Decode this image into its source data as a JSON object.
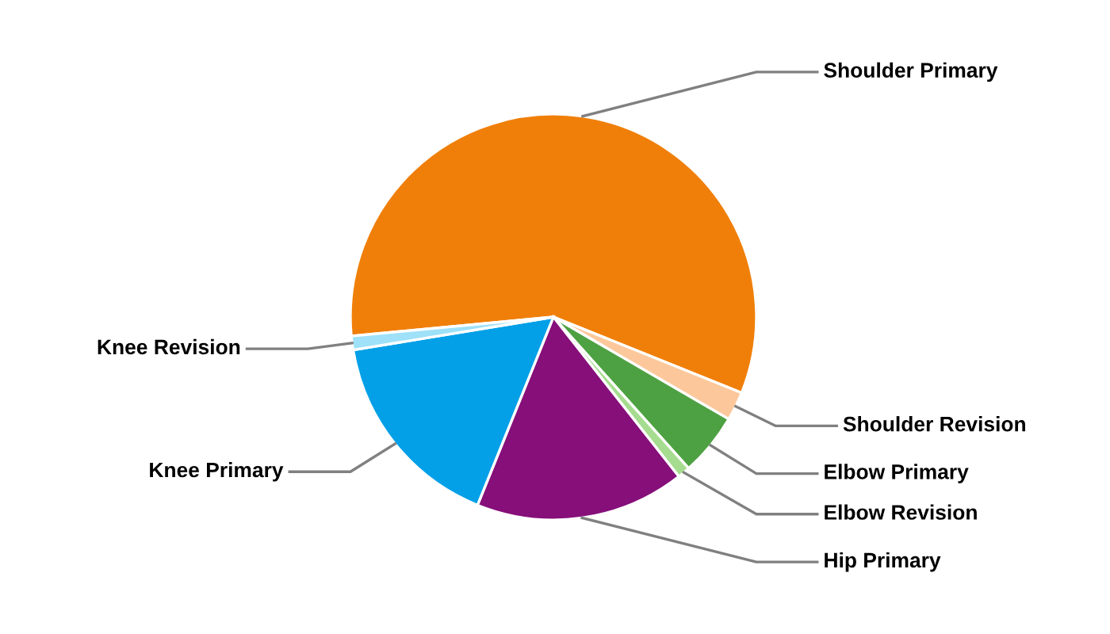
{
  "chart_data": {
    "type": "pie",
    "categories": [
      "Shoulder Primary",
      "Shoulder Revision",
      "Elbow Primary",
      "Elbow Revision",
      "Hip Primary",
      "Knee Primary",
      "Knee Revision"
    ],
    "values": [
      57.6,
      2.3,
      5.0,
      1.0,
      16.7,
      16.3,
      1.1
    ],
    "colors": [
      "#f07f09",
      "#fcc89b",
      "#4ea142",
      "#a6dc8f",
      "#860f7a",
      "#03a0e8",
      "#9ee1f8"
    ],
    "legend": false
  }
}
